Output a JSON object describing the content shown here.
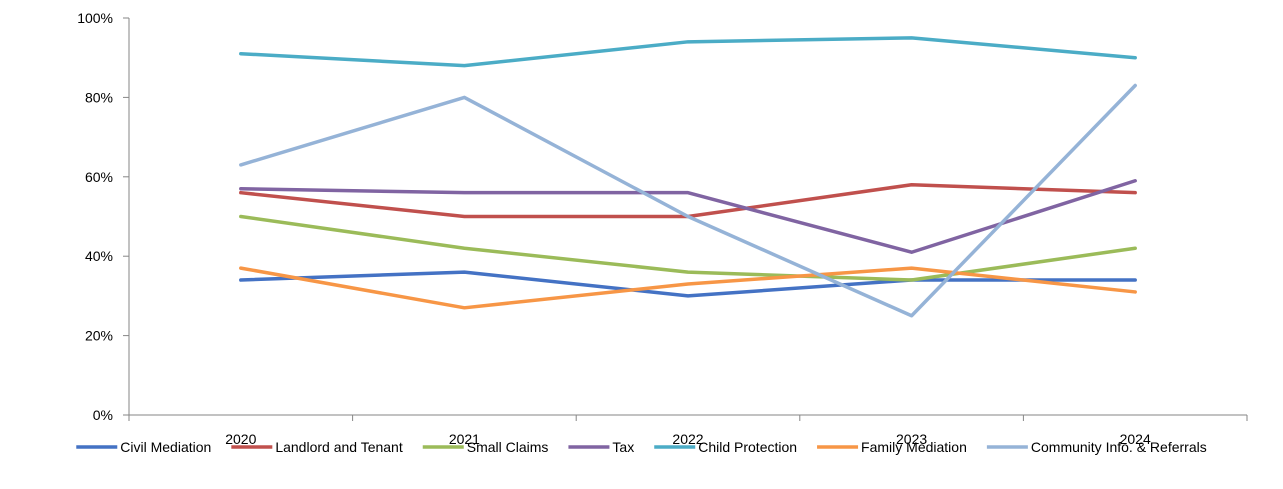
{
  "chart_data": {
    "type": "line",
    "categories": [
      "2020",
      "2021",
      "2022",
      "2023",
      "2024"
    ],
    "y_ticks": [
      "0%",
      "20%",
      "40%",
      "60%",
      "80%",
      "100%"
    ],
    "ylim": [
      0,
      100
    ],
    "grid": false,
    "legend_position": "bottom",
    "series": [
      {
        "name": "Civil Mediation",
        "color": "#4472C4",
        "values": [
          34,
          36,
          30,
          34,
          34
        ]
      },
      {
        "name": "Landlord and Tenant",
        "color": "#C0504D",
        "values": [
          56,
          50,
          50,
          58,
          56
        ]
      },
      {
        "name": "Small Claims",
        "color": "#9BBB59",
        "values": [
          50,
          42,
          36,
          34,
          42
        ]
      },
      {
        "name": "Tax",
        "color": "#8064A2",
        "values": [
          57,
          56,
          56,
          41,
          59
        ]
      },
      {
        "name": "Child Protection",
        "color": "#4BACC6",
        "values": [
          91,
          88,
          94,
          95,
          90
        ]
      },
      {
        "name": "Family Mediation",
        "color": "#F79646",
        "values": [
          37,
          27,
          33,
          37,
          31
        ]
      },
      {
        "name": "Community Info. & Referrals",
        "color": "#95B3D7",
        "values": [
          63,
          80,
          50,
          25,
          83
        ]
      }
    ]
  }
}
